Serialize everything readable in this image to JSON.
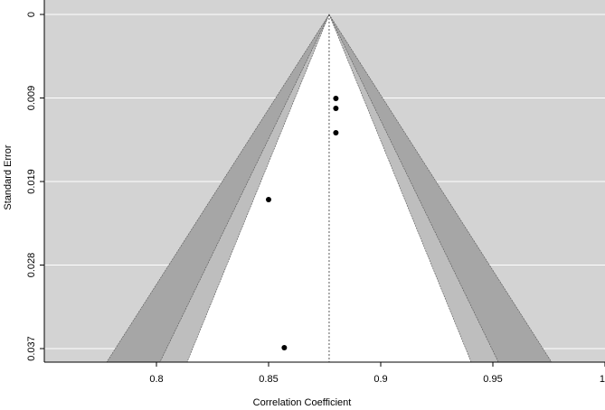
{
  "chart_data": {
    "type": "scatter",
    "title": "",
    "xlabel": "Correlation Coefficient",
    "ylabel": "Standard Error",
    "xlim": [
      0.75,
      1.0
    ],
    "ylim": [
      0.0385,
      0
    ],
    "y_axis_reversed": true,
    "x_ticks": [
      "0.8",
      "0.85",
      "0.9",
      "0.95",
      "1"
    ],
    "x_tick_values": [
      0.8,
      0.85,
      0.9,
      0.95,
      1.0
    ],
    "y_ticks": [
      "0",
      "0.009",
      "0.019",
      "0.028",
      "0.037"
    ],
    "y_tick_values": [
      0,
      0.00925,
      0.0185,
      0.02775,
      0.037
    ],
    "grid": "horizontal",
    "summary_estimate": 0.877,
    "contour_multipliers": [
      1.645,
      1.96,
      2.576
    ],
    "points": [
      {
        "x": 0.88,
        "y": 0.0093
      },
      {
        "x": 0.88,
        "y": 0.0104
      },
      {
        "x": 0.88,
        "y": 0.0131
      },
      {
        "x": 0.85,
        "y": 0.0205
      },
      {
        "x": 0.857,
        "y": 0.0369
      }
    ],
    "colors": {
      "background": "#d3d3d3",
      "region_90": "#ffffff",
      "region_95": "#bebebe",
      "region_99": "#a6a6a6",
      "point": "#000000",
      "gridline": "#ffffff"
    }
  }
}
